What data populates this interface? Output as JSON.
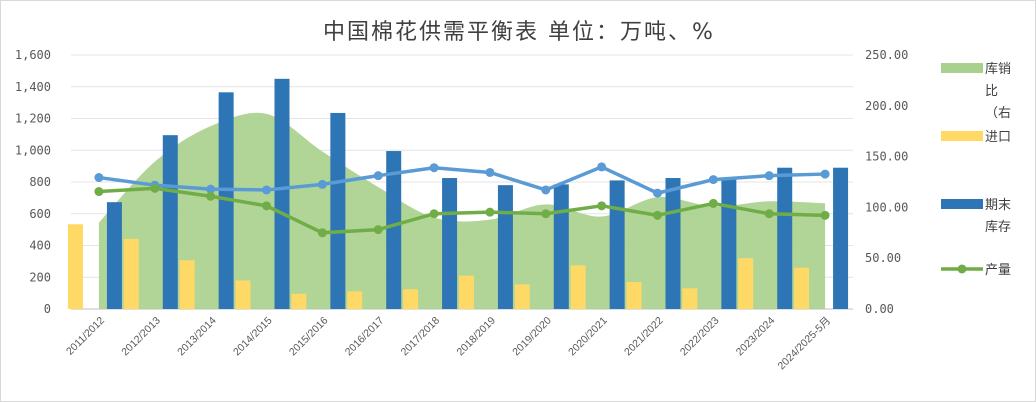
{
  "chart_data": {
    "type": "bar",
    "title": "中国棉花供需平衡表   单位：万吨、%",
    "categories": [
      "2011/2012",
      "2012/2013",
      "2013/2014",
      "2014/2015",
      "2015/2016",
      "2016/2017",
      "2017/2018",
      "2018/2019",
      "2019/2020",
      "2020/2021",
      "2021/2022",
      "2022/2023",
      "2023/2024",
      "2024/2025-5月"
    ],
    "y_left": {
      "range": [
        0,
        1600
      ],
      "ticks": [
        "0",
        "200",
        "400",
        "600",
        "800",
        "1,000",
        "1,200",
        "1,400",
        "1,600"
      ]
    },
    "y_right": {
      "range": [
        0,
        250
      ],
      "ticks": [
        "0.00",
        "50.00",
        "100.00",
        "150.00",
        "200.00",
        "250.00"
      ]
    },
    "grid": true,
    "legend_position": "right",
    "series": [
      {
        "name": "库销比（右",
        "kind": "area",
        "axis": "right",
        "color": "#a9d18e",
        "values": [
          85,
          145,
          180,
          192,
          155,
          120,
          90,
          88,
          103,
          91,
          110,
          101,
          106,
          104
        ]
      },
      {
        "name": "进口",
        "kind": "bar",
        "axis": "left",
        "color": "#ffd966",
        "values": [
          534,
          442,
          307,
          180,
          96,
          111,
          124,
          210,
          155,
          275,
          170,
          130,
          320,
          260
        ]
      },
      {
        "name": "期末库存",
        "kind": "bar",
        "axis": "left",
        "color": "#2e75b6",
        "values": [
          673,
          1095,
          1365,
          1450,
          1235,
          995,
          825,
          780,
          785,
          810,
          825,
          825,
          890,
          890
        ]
      },
      {
        "name": "",
        "kind": "line",
        "axis": "left",
        "color": "#5b9bd5",
        "values": [
          828,
          780,
          755,
          750,
          785,
          840,
          890,
          860,
          750,
          895,
          730,
          815,
          840,
          850
        ]
      },
      {
        "name": "产量",
        "kind": "line",
        "axis": "left",
        "color": "#70ad47",
        "values": [
          740,
          760,
          710,
          650,
          480,
          500,
          600,
          610,
          600,
          650,
          590,
          665,
          600,
          590
        ]
      }
    ]
  }
}
